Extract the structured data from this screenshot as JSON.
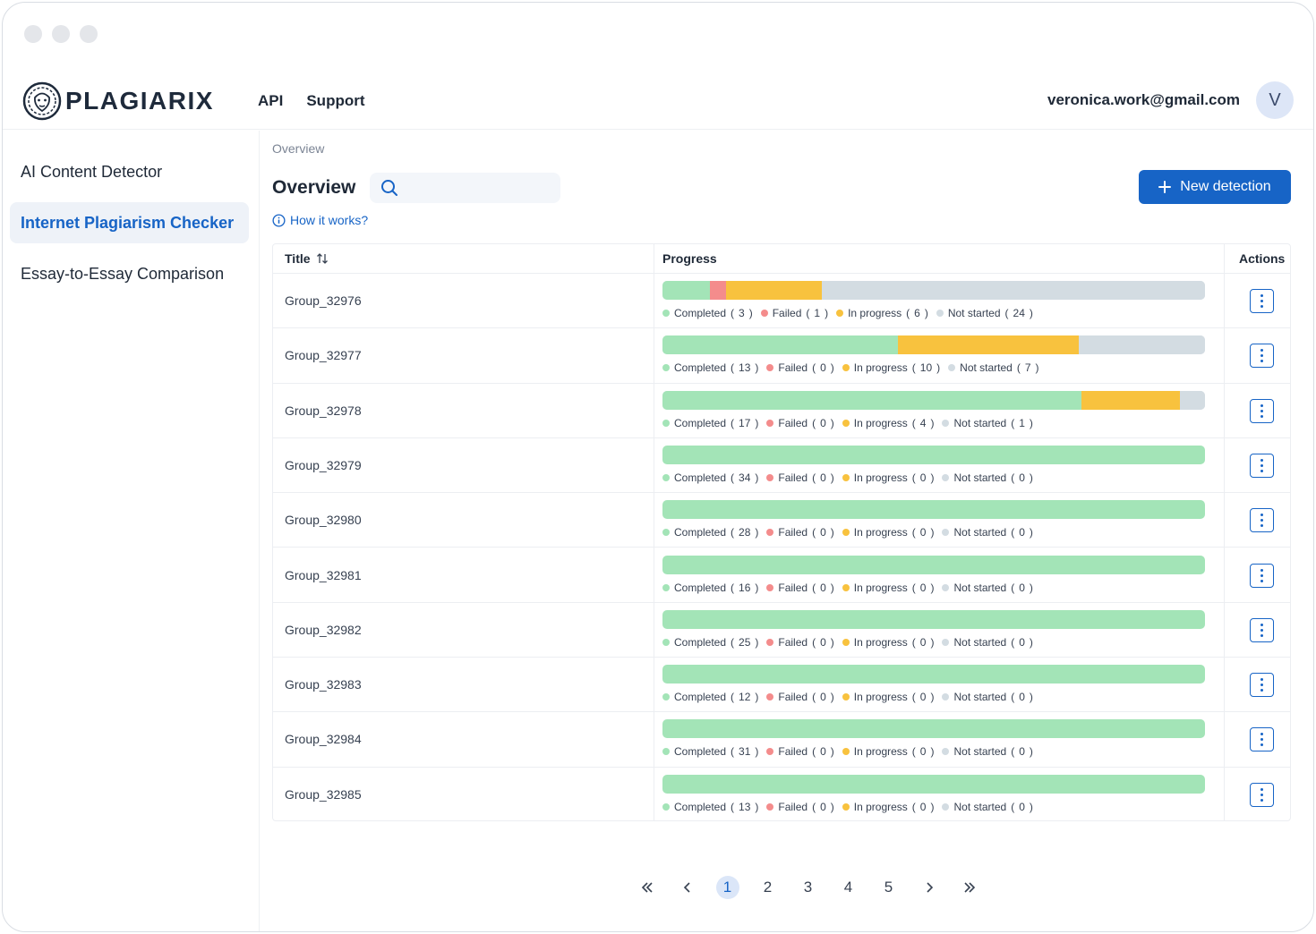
{
  "brand": {
    "name": "PLAGIARIX"
  },
  "topnav": [
    "API",
    "Support"
  ],
  "user": {
    "email": "veronica.work@gmail.com",
    "initial": "V"
  },
  "sidebar": {
    "items": [
      {
        "label": "AI Content Detector",
        "active": false
      },
      {
        "label": "Internet Plagiarism Checker",
        "active": true
      },
      {
        "label": "Essay-to-Essay Comparison",
        "active": false
      }
    ]
  },
  "breadcrumb": "Overview",
  "page_title": "Overview",
  "search": {
    "value": "",
    "placeholder": ""
  },
  "help_link": "How it works?",
  "new_button": "New detection",
  "table": {
    "headers": {
      "title": "Title",
      "progress": "Progress",
      "actions": "Actions"
    },
    "legend_labels": {
      "completed": "Completed",
      "failed": "Failed",
      "in_progress": "In progress",
      "not_started": "Not started"
    },
    "colors": {
      "completed": "#a3e4b7",
      "failed": "#f48c8c",
      "in_progress": "#f8c23e",
      "not_started": "#d3dce2"
    },
    "rows": [
      {
        "title": "Group_32976",
        "completed": 3,
        "failed": 1,
        "in_progress": 6,
        "not_started": 24
      },
      {
        "title": "Group_32977",
        "completed": 13,
        "failed": 0,
        "in_progress": 10,
        "not_started": 7
      },
      {
        "title": "Group_32978",
        "completed": 17,
        "failed": 0,
        "in_progress": 4,
        "not_started": 1
      },
      {
        "title": "Group_32979",
        "completed": 34,
        "failed": 0,
        "in_progress": 0,
        "not_started": 0
      },
      {
        "title": "Group_32980",
        "completed": 28,
        "failed": 0,
        "in_progress": 0,
        "not_started": 0
      },
      {
        "title": "Group_32981",
        "completed": 16,
        "failed": 0,
        "in_progress": 0,
        "not_started": 0
      },
      {
        "title": "Group_32982",
        "completed": 25,
        "failed": 0,
        "in_progress": 0,
        "not_started": 0
      },
      {
        "title": "Group_32983",
        "completed": 12,
        "failed": 0,
        "in_progress": 0,
        "not_started": 0
      },
      {
        "title": "Group_32984",
        "completed": 31,
        "failed": 0,
        "in_progress": 0,
        "not_started": 0
      },
      {
        "title": "Group_32985",
        "completed": 13,
        "failed": 0,
        "in_progress": 0,
        "not_started": 0
      }
    ]
  },
  "pagination": {
    "pages": [
      "1",
      "2",
      "3",
      "4",
      "5"
    ],
    "current": "1"
  }
}
